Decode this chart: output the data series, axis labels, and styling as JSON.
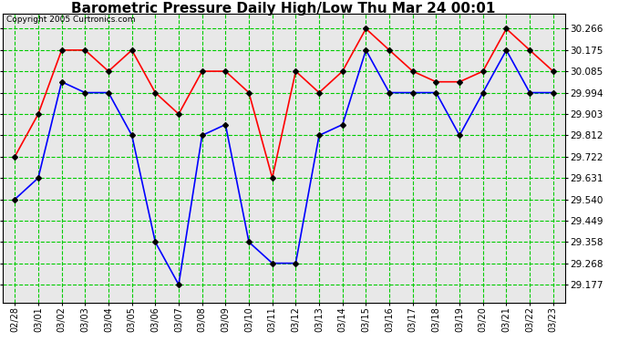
{
  "title": "Barometric Pressure Daily High/Low Thu Mar 24 00:01",
  "copyright": "Copyright 2005 Curtronics.com",
  "dates": [
    "02/28",
    "03/01",
    "03/02",
    "03/03",
    "03/04",
    "03/05",
    "03/06",
    "03/07",
    "03/08",
    "03/09",
    "03/10",
    "03/11",
    "03/12",
    "03/13",
    "03/14",
    "03/15",
    "03/16",
    "03/17",
    "03/18",
    "03/19",
    "03/20",
    "03/21",
    "03/22",
    "03/23"
  ],
  "high": [
    29.722,
    29.903,
    30.175,
    30.175,
    30.085,
    30.175,
    29.994,
    29.903,
    30.085,
    30.085,
    29.994,
    29.631,
    30.085,
    29.994,
    30.085,
    30.266,
    30.175,
    30.085,
    30.04,
    30.04,
    30.085,
    30.266,
    30.175,
    30.085
  ],
  "low": [
    29.54,
    29.631,
    30.04,
    29.994,
    29.994,
    29.812,
    29.358,
    29.177,
    29.812,
    29.858,
    29.358,
    29.268,
    29.268,
    29.812,
    29.858,
    30.175,
    29.994,
    29.994,
    29.994,
    29.812,
    29.994,
    30.175,
    29.994,
    29.994
  ],
  "high_color": "#ff0000",
  "low_color": "#0000ff",
  "bg_color": "#ffffff",
  "plot_bg_color": "#e8e8e8",
  "grid_color": "#00cc00",
  "yticks": [
    29.177,
    29.268,
    29.358,
    29.449,
    29.54,
    29.631,
    29.722,
    29.812,
    29.903,
    29.994,
    30.085,
    30.175,
    30.266
  ],
  "ylim": [
    29.1,
    30.33
  ],
  "title_fontsize": 11,
  "marker": "D",
  "marker_size": 3,
  "linewidth": 1.2
}
